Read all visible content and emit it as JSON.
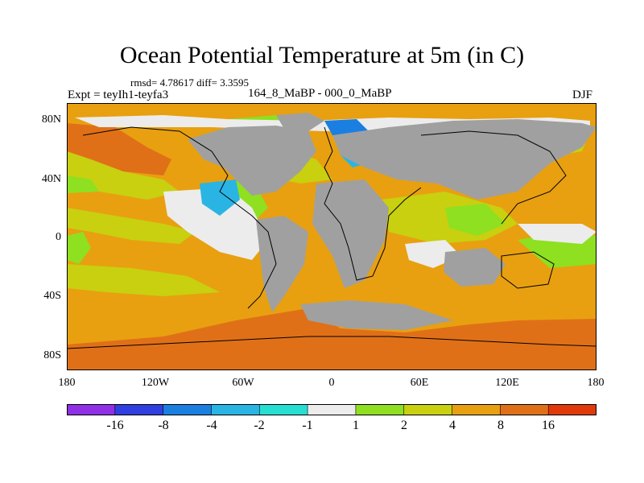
{
  "figure": {
    "title": "Ocean Potential Temperature at 5m (in C)",
    "stats": "rmsd= 4.78617 diff= 3.3595",
    "experiment": "Expt = teyIh1-teyfa3",
    "subtitle": "164_8_MaBP - 000_0_MaBP",
    "season": "DJF"
  },
  "axes": {
    "y_ticks": [
      "80N",
      "40N",
      "0",
      "40S",
      "80S"
    ],
    "x_ticks": [
      "180",
      "120W",
      "60W",
      "0",
      "60E",
      "120E",
      "180"
    ]
  },
  "colorbar": {
    "labels": [
      "-16",
      "-8",
      "-4",
      "-2",
      "-1",
      "1",
      "2",
      "4",
      "8",
      "16"
    ],
    "colors": [
      "#8f2fe6",
      "#2f3fe0",
      "#1a7fe0",
      "#2ab4e4",
      "#27ded2",
      "#ececec",
      "#8ee020",
      "#c8d010",
      "#e8a010",
      "#e07018",
      "#e03a0a"
    ]
  },
  "colors": {
    "land": "#a0a0a0",
    "outline": "#000000",
    "base_ocean": "#e8a010"
  }
}
